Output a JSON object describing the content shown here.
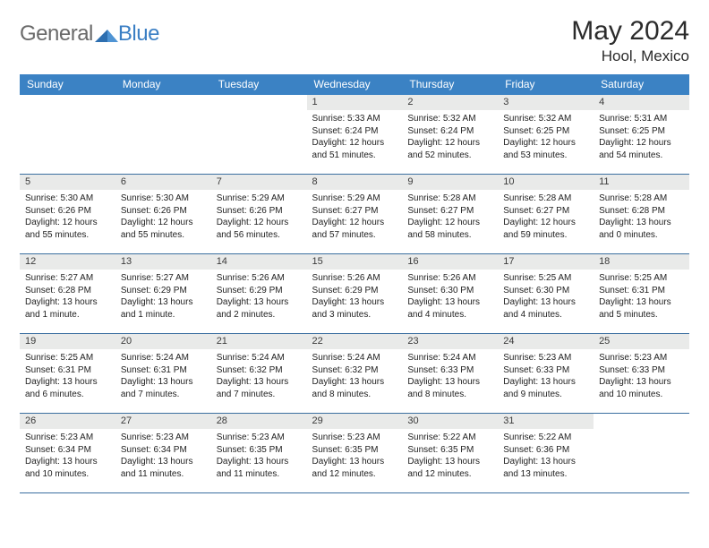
{
  "brand": {
    "part1": "General",
    "part2": "Blue"
  },
  "title": "May 2024",
  "location": "Hool, Mexico",
  "colors": {
    "header_bg": "#3b82c4",
    "header_text": "#ffffff",
    "daynum_bg": "#e9eae9",
    "border": "#3b6fa0",
    "brand_gray": "#6a6a6a",
    "brand_blue": "#3b7fc4"
  },
  "weekdays": [
    "Sunday",
    "Monday",
    "Tuesday",
    "Wednesday",
    "Thursday",
    "Friday",
    "Saturday"
  ],
  "leading_blanks": 3,
  "days": [
    {
      "n": "1",
      "sunrise": "5:33 AM",
      "sunset": "6:24 PM",
      "daylight": "12 hours and 51 minutes."
    },
    {
      "n": "2",
      "sunrise": "5:32 AM",
      "sunset": "6:24 PM",
      "daylight": "12 hours and 52 minutes."
    },
    {
      "n": "3",
      "sunrise": "5:32 AM",
      "sunset": "6:25 PM",
      "daylight": "12 hours and 53 minutes."
    },
    {
      "n": "4",
      "sunrise": "5:31 AM",
      "sunset": "6:25 PM",
      "daylight": "12 hours and 54 minutes."
    },
    {
      "n": "5",
      "sunrise": "5:30 AM",
      "sunset": "6:26 PM",
      "daylight": "12 hours and 55 minutes."
    },
    {
      "n": "6",
      "sunrise": "5:30 AM",
      "sunset": "6:26 PM",
      "daylight": "12 hours and 55 minutes."
    },
    {
      "n": "7",
      "sunrise": "5:29 AM",
      "sunset": "6:26 PM",
      "daylight": "12 hours and 56 minutes."
    },
    {
      "n": "8",
      "sunrise": "5:29 AM",
      "sunset": "6:27 PM",
      "daylight": "12 hours and 57 minutes."
    },
    {
      "n": "9",
      "sunrise": "5:28 AM",
      "sunset": "6:27 PM",
      "daylight": "12 hours and 58 minutes."
    },
    {
      "n": "10",
      "sunrise": "5:28 AM",
      "sunset": "6:27 PM",
      "daylight": "12 hours and 59 minutes."
    },
    {
      "n": "11",
      "sunrise": "5:28 AM",
      "sunset": "6:28 PM",
      "daylight": "13 hours and 0 minutes."
    },
    {
      "n": "12",
      "sunrise": "5:27 AM",
      "sunset": "6:28 PM",
      "daylight": "13 hours and 1 minute."
    },
    {
      "n": "13",
      "sunrise": "5:27 AM",
      "sunset": "6:29 PM",
      "daylight": "13 hours and 1 minute."
    },
    {
      "n": "14",
      "sunrise": "5:26 AM",
      "sunset": "6:29 PM",
      "daylight": "13 hours and 2 minutes."
    },
    {
      "n": "15",
      "sunrise": "5:26 AM",
      "sunset": "6:29 PM",
      "daylight": "13 hours and 3 minutes."
    },
    {
      "n": "16",
      "sunrise": "5:26 AM",
      "sunset": "6:30 PM",
      "daylight": "13 hours and 4 minutes."
    },
    {
      "n": "17",
      "sunrise": "5:25 AM",
      "sunset": "6:30 PM",
      "daylight": "13 hours and 4 minutes."
    },
    {
      "n": "18",
      "sunrise": "5:25 AM",
      "sunset": "6:31 PM",
      "daylight": "13 hours and 5 minutes."
    },
    {
      "n": "19",
      "sunrise": "5:25 AM",
      "sunset": "6:31 PM",
      "daylight": "13 hours and 6 minutes."
    },
    {
      "n": "20",
      "sunrise": "5:24 AM",
      "sunset": "6:31 PM",
      "daylight": "13 hours and 7 minutes."
    },
    {
      "n": "21",
      "sunrise": "5:24 AM",
      "sunset": "6:32 PM",
      "daylight": "13 hours and 7 minutes."
    },
    {
      "n": "22",
      "sunrise": "5:24 AM",
      "sunset": "6:32 PM",
      "daylight": "13 hours and 8 minutes."
    },
    {
      "n": "23",
      "sunrise": "5:24 AM",
      "sunset": "6:33 PM",
      "daylight": "13 hours and 8 minutes."
    },
    {
      "n": "24",
      "sunrise": "5:23 AM",
      "sunset": "6:33 PM",
      "daylight": "13 hours and 9 minutes."
    },
    {
      "n": "25",
      "sunrise": "5:23 AM",
      "sunset": "6:33 PM",
      "daylight": "13 hours and 10 minutes."
    },
    {
      "n": "26",
      "sunrise": "5:23 AM",
      "sunset": "6:34 PM",
      "daylight": "13 hours and 10 minutes."
    },
    {
      "n": "27",
      "sunrise": "5:23 AM",
      "sunset": "6:34 PM",
      "daylight": "13 hours and 11 minutes."
    },
    {
      "n": "28",
      "sunrise": "5:23 AM",
      "sunset": "6:35 PM",
      "daylight": "13 hours and 11 minutes."
    },
    {
      "n": "29",
      "sunrise": "5:23 AM",
      "sunset": "6:35 PM",
      "daylight": "13 hours and 12 minutes."
    },
    {
      "n": "30",
      "sunrise": "5:22 AM",
      "sunset": "6:35 PM",
      "daylight": "13 hours and 12 minutes."
    },
    {
      "n": "31",
      "sunrise": "5:22 AM",
      "sunset": "6:36 PM",
      "daylight": "13 hours and 13 minutes."
    }
  ],
  "labels": {
    "sunrise": "Sunrise:",
    "sunset": "Sunset:",
    "daylight": "Daylight:"
  }
}
